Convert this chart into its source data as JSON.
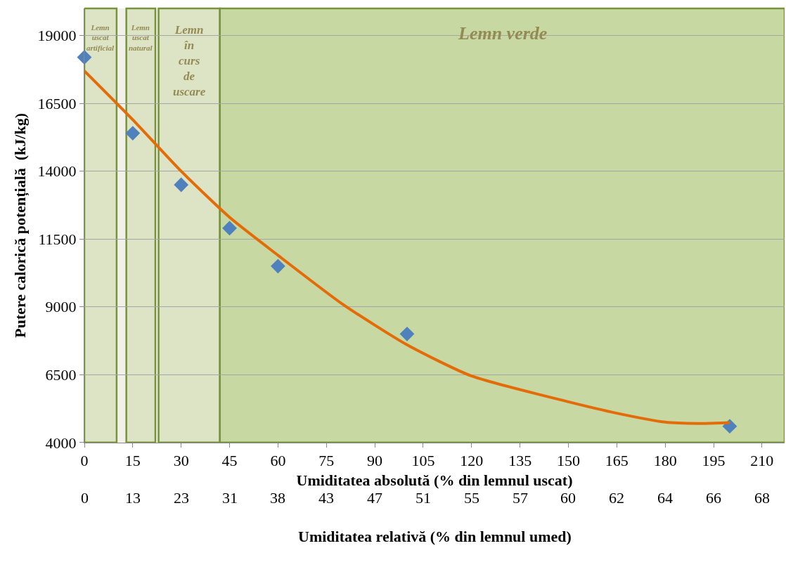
{
  "chart_data": {
    "type": "scatter",
    "xlabel": "Umiditatea absolută (% din lemnul uscat)",
    "ylabel": "Putere calorică potențială  (kJ/kg)",
    "x2label": "Umiditatea relativă (% din lemnul umed)",
    "xlim": [
      0,
      217
    ],
    "xticks": [
      0,
      15,
      30,
      45,
      60,
      75,
      90,
      105,
      120,
      135,
      150,
      165,
      180,
      195,
      210
    ],
    "annotations": [
      "0",
      "13",
      "23",
      "31",
      "38",
      "43",
      "47",
      "51",
      "55",
      "57",
      "60",
      "62",
      "64",
      "66",
      "68"
    ],
    "ylim": [
      4000,
      20000
    ],
    "yticks": [
      4000,
      6500,
      9000,
      11500,
      14000,
      16500,
      19000
    ],
    "grid": "y",
    "series": [
      {
        "type": "scatter",
        "marker": "diamond",
        "color": "#4f81bd",
        "x": [
          0,
          15,
          30,
          45,
          60,
          100,
          200
        ],
        "values": [
          18200,
          15400,
          13500,
          11900,
          10500,
          8000,
          4600
        ]
      },
      {
        "type": "line",
        "color": "#e36c09",
        "x": [
          0,
          15,
          30,
          45,
          60,
          80,
          100,
          120,
          150,
          165,
          180,
          190,
          200
        ],
        "values": [
          17700,
          15900,
          14000,
          12300,
          10900,
          9100,
          7600,
          6450,
          5500,
          5080,
          4750,
          4700,
          4730
        ]
      }
    ],
    "bands": [
      {
        "axis": "x",
        "from": 0,
        "to": 10,
        "label": "Lemn uscat artificial",
        "color": "#dde4c6"
      },
      {
        "axis": "x",
        "from": 13,
        "to": 22,
        "label": "Lemn uscat natural",
        "color": "#dde4c6"
      },
      {
        "axis": "x",
        "from": 23,
        "to": 42,
        "label": "Lemn în curs de uscare",
        "color": "#dde4c6"
      },
      {
        "axis": "x",
        "from": 42,
        "to": 217,
        "label": "Lemn verde",
        "color": "#c8d8a2"
      }
    ]
  }
}
